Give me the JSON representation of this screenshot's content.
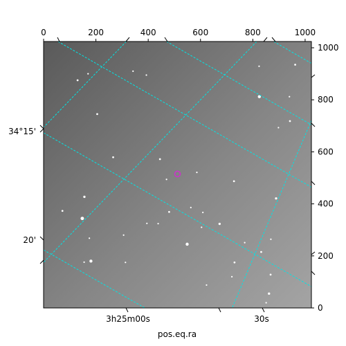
{
  "chart_data": {
    "type": "scatter",
    "title": "",
    "xlabel": "pos.eq.ra",
    "ylabel": "",
    "pixel_axes": {
      "x_range": [
        0,
        1024
      ],
      "y_range": [
        0,
        1024
      ],
      "x_ticks": [
        "0",
        "200",
        "400",
        "600",
        "800",
        "1000"
      ],
      "y_ticks": [
        "0",
        "200",
        "400",
        "600",
        "800",
        "1000"
      ]
    },
    "world_axes": {
      "ra_ticks": [
        "3h25m00s",
        "30s"
      ],
      "dec_ticks": [
        "34°15'",
        "20'"
      ],
      "grid_color": "#00e5e5",
      "grid": true
    },
    "image": {
      "colormap": "gray",
      "marker_color": "#cc33cc",
      "marker_shape": "circle",
      "marker_x": 512,
      "marker_y": 515
    },
    "stars": [
      {
        "x": 130,
        "y": 875,
        "m": 2.5
      },
      {
        "x": 170,
        "y": 900,
        "m": 2
      },
      {
        "x": 342,
        "y": 910,
        "m": 2
      },
      {
        "x": 393,
        "y": 895,
        "m": 2
      },
      {
        "x": 824,
        "y": 929,
        "m": 2
      },
      {
        "x": 962,
        "y": 935,
        "m": 2.5
      },
      {
        "x": 825,
        "y": 812,
        "m": 4
      },
      {
        "x": 940,
        "y": 812,
        "m": 2
      },
      {
        "x": 205,
        "y": 745,
        "m": 2.5
      },
      {
        "x": 942,
        "y": 718,
        "m": 2.5
      },
      {
        "x": 898,
        "y": 693,
        "m": 2
      },
      {
        "x": 266,
        "y": 579,
        "m": 2.5
      },
      {
        "x": 445,
        "y": 572,
        "m": 2.5
      },
      {
        "x": 470,
        "y": 494,
        "m": 2
      },
      {
        "x": 586,
        "y": 521,
        "m": 2
      },
      {
        "x": 728,
        "y": 487,
        "m": 2.5
      },
      {
        "x": 156,
        "y": 427,
        "m": 3
      },
      {
        "x": 889,
        "y": 421,
        "m": 3
      },
      {
        "x": 480,
        "y": 369,
        "m": 2.5
      },
      {
        "x": 72,
        "y": 373,
        "m": 2.5
      },
      {
        "x": 148,
        "y": 344,
        "m": 4.5
      },
      {
        "x": 673,
        "y": 323,
        "m": 3
      },
      {
        "x": 438,
        "y": 324,
        "m": 2
      },
      {
        "x": 549,
        "y": 245,
        "m": 4
      },
      {
        "x": 181,
        "y": 180,
        "m": 4
      },
      {
        "x": 730,
        "y": 175,
        "m": 2.5
      },
      {
        "x": 769,
        "y": 251,
        "m": 2
      },
      {
        "x": 832,
        "y": 215,
        "m": 2.5
      },
      {
        "x": 869,
        "y": 264,
        "m": 2
      },
      {
        "x": 175,
        "y": 268,
        "m": 2
      },
      {
        "x": 155,
        "y": 176,
        "m": 2
      },
      {
        "x": 313,
        "y": 175,
        "m": 2
      },
      {
        "x": 604,
        "y": 310,
        "m": 2
      },
      {
        "x": 868,
        "y": 128,
        "m": 2.5
      },
      {
        "x": 862,
        "y": 55,
        "m": 3
      },
      {
        "x": 851,
        "y": 20,
        "m": 2
      },
      {
        "x": 623,
        "y": 88,
        "m": 2
      },
      {
        "x": 609,
        "y": 367,
        "m": 2
      },
      {
        "x": 563,
        "y": 386,
        "m": 2
      },
      {
        "x": 395,
        "y": 325,
        "m": 2
      },
      {
        "x": 306,
        "y": 280,
        "m": 2
      },
      {
        "x": 720,
        "y": 120,
        "m": 2
      }
    ],
    "ra_lines": [
      {
        "x1": 55,
        "y1": 1024,
        "x2": 1024,
        "y2": 464
      },
      {
        "x1": 470,
        "y1": 1024,
        "x2": 1024,
        "y2": 704
      },
      {
        "x1": 880,
        "y1": 1024,
        "x2": 1024,
        "y2": 940
      },
      {
        "x1": 0,
        "y1": 223,
        "x2": 387,
        "y2": 0
      },
      {
        "x1": 0,
        "y1": 673,
        "x2": 1024,
        "y2": 82
      }
    ],
    "dec_lines": [
      {
        "x1": 316,
        "y1": 1024,
        "x2": 0,
        "y2": 694
      },
      {
        "x1": 815,
        "y1": 1024,
        "x2": 0,
        "y2": 175
      },
      {
        "x1": 1024,
        "y1": 721,
        "x2": 721,
        "y2": 0
      },
      {
        "x1": 1024,
        "y1": 259,
        "x2": 1024,
        "y2": 259
      }
    ]
  }
}
